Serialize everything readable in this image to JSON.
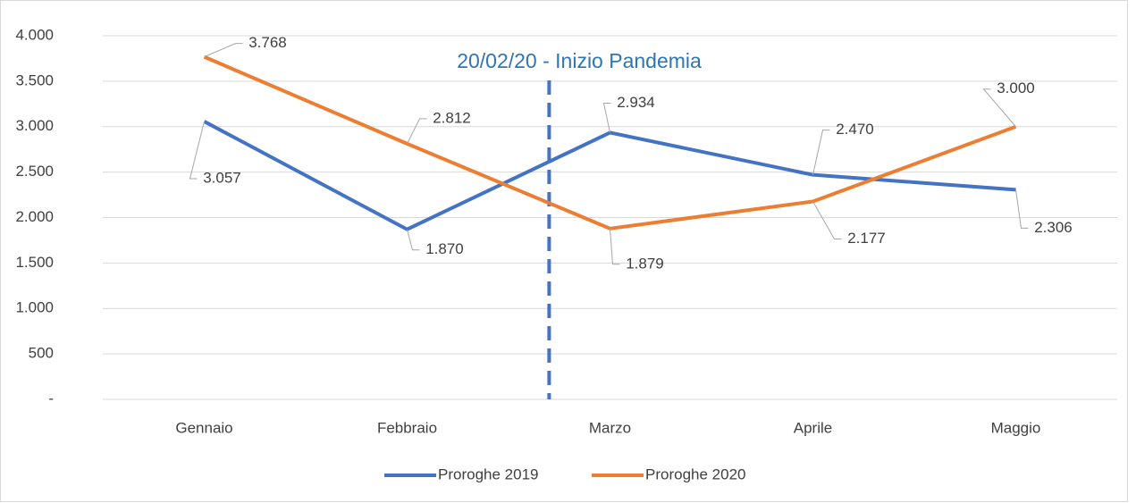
{
  "chart_data": {
    "type": "line",
    "annotation": "20/02/20 - Inizio Pandemia",
    "categories": [
      "Gennaio",
      "Febbraio",
      "Marzo",
      "Aprile",
      "Maggio"
    ],
    "series": [
      {
        "name": "Proroghe 2019",
        "color": "#4472c4",
        "values": [
          3057,
          1870,
          2934,
          2470,
          2306
        ],
        "value_labels": [
          "3.057",
          "1.870",
          "2.934",
          "2.470",
          "2.306"
        ]
      },
      {
        "name": "Proroghe 2020",
        "color": "#ed7d31",
        "values": [
          3768,
          2812,
          1879,
          2177,
          3000
        ],
        "value_labels": [
          "3.768",
          "2.812",
          "1.879",
          "2.177",
          "3.000"
        ]
      }
    ],
    "ylim": [
      0,
      4000
    ],
    "yticks": [
      {
        "value": 0,
        "label": "-"
      },
      500,
      {
        "value": 1000,
        "label": "1.000"
      },
      {
        "value": 1500,
        "label": "1.500"
      },
      {
        "value": 2000,
        "label": "2.000"
      },
      {
        "value": 2500,
        "label": "2.500"
      },
      {
        "value": 3000,
        "label": "3.000"
      },
      {
        "value": 3500,
        "label": "3.500"
      },
      {
        "value": 4000,
        "label": "4.000"
      }
    ],
    "grid": true,
    "legend": "bottom"
  }
}
